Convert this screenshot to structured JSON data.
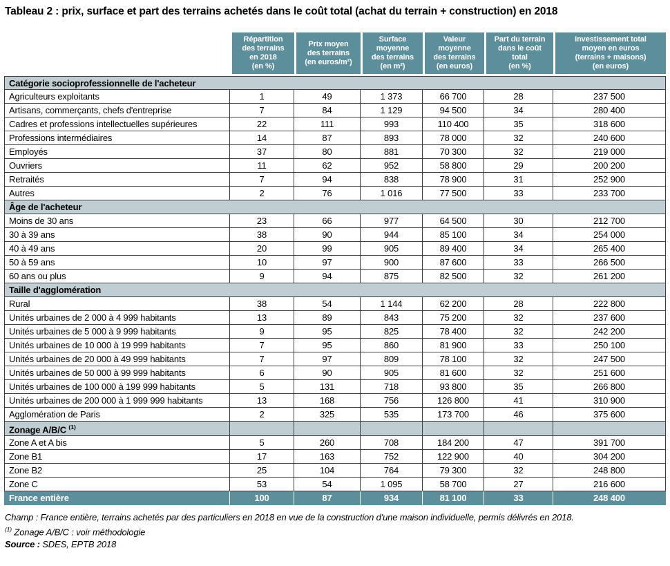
{
  "title": "Tableau 2 : prix, surface et part des terrains achetés dans le coût total (achat du terrain + construction) en 2018",
  "colors": {
    "teal": "#5d8e9b",
    "section_bg": "#c0cdd3",
    "border": "#3e3e3e"
  },
  "table": {
    "columns": [
      "Répartition\ndes terrains\nen 2018\n(en %)",
      "Prix moyen\ndes terrains\n(en euros/m²)",
      "Surface\nmoyenne\ndes terrains\n(en m²)",
      "Valeur\nmoyenne\ndes terrains\n(en euros)",
      "Part du terrain\ndans le coût\ntotal\n(en %)",
      "Investissement total\nmoyen en euros\n(terrains + maisons)\n(en euros)"
    ],
    "sections": [
      {
        "label": "Catégorie socioprofessionnelle de l'acheteur",
        "sup": "",
        "divided": false,
        "rows": [
          {
            "label": "Agriculteurs exploitants",
            "values": [
              "1",
              "49",
              "1 373",
              "66 700",
              "28",
              "237 500"
            ]
          },
          {
            "label": "Artisans, commerçants, chefs d'entreprise",
            "values": [
              "7",
              "84",
              "1 129",
              "94 500",
              "34",
              "280 400"
            ]
          },
          {
            "label": "Cadres et professions intellectuelles supérieures",
            "values": [
              "22",
              "111",
              "993",
              "110 400",
              "35",
              "318 600"
            ]
          },
          {
            "label": "Professions intermédiaires",
            "values": [
              "14",
              "87",
              "893",
              "78 000",
              "32",
              "240 600"
            ]
          },
          {
            "label": "Employés",
            "values": [
              "37",
              "80",
              "881",
              "70 300",
              "32",
              "219 000"
            ]
          },
          {
            "label": "Ouvriers",
            "values": [
              "11",
              "62",
              "952",
              "58 800",
              "29",
              "200 200"
            ]
          },
          {
            "label": "Retraités",
            "values": [
              "7",
              "94",
              "838",
              "78 900",
              "31",
              "252 900"
            ]
          },
          {
            "label": "Autres",
            "values": [
              "2",
              "76",
              "1 016",
              "77 500",
              "33",
              "233 700"
            ]
          }
        ]
      },
      {
        "label": "Âge de l'acheteur",
        "sup": "",
        "divided": false,
        "rows": [
          {
            "label": "Moins de 30 ans",
            "values": [
              "23",
              "66",
              "977",
              "64 500",
              "30",
              "212 700"
            ]
          },
          {
            "label": "30 à 39 ans",
            "values": [
              "38",
              "90",
              "944",
              "85 100",
              "34",
              "254 000"
            ]
          },
          {
            "label": "40 à 49 ans",
            "values": [
              "20",
              "99",
              "905",
              "89 400",
              "34",
              "265 400"
            ]
          },
          {
            "label": "50 à 59 ans",
            "values": [
              "10",
              "97",
              "900",
              "87 600",
              "33",
              "266 500"
            ]
          },
          {
            "label": "60 ans ou plus",
            "values": [
              "9",
              "94",
              "875",
              "82 500",
              "32",
              "261 200"
            ]
          }
        ]
      },
      {
        "label": "Taille d'agglomération",
        "sup": "",
        "divided": false,
        "rows": [
          {
            "label": "Rural",
            "values": [
              "38",
              "54",
              "1 144",
              "62 200",
              "28",
              "222 800"
            ]
          },
          {
            "label": "Unités urbaines de 2 000 à 4 999 habitants",
            "values": [
              "13",
              "89",
              "843",
              "75 200",
              "32",
              "237 600"
            ]
          },
          {
            "label": "Unités urbaines de 5 000 à 9 999 habitants",
            "values": [
              "9",
              "95",
              "825",
              "78 400",
              "32",
              "242 200"
            ]
          },
          {
            "label": "Unités urbaines de 10 000 à 19 999 habitants",
            "values": [
              "7",
              "95",
              "860",
              "81 900",
              "33",
              "250 100"
            ]
          },
          {
            "label": "Unités urbaines de 20 000 à 49 999 habitants",
            "values": [
              "7",
              "97",
              "809",
              "78 100",
              "32",
              "247 500"
            ]
          },
          {
            "label": "Unités urbaines de 50 000 à 99 999 habitants",
            "values": [
              "6",
              "90",
              "905",
              "81 600",
              "32",
              "251 600"
            ]
          },
          {
            "label": "Unités urbaines de 100 000 à 199 999 habitants",
            "values": [
              "5",
              "131",
              "718",
              "93 800",
              "35",
              "266 800"
            ]
          },
          {
            "label": "Unités urbaines de 200 000 à 1 999 999 habitants",
            "values": [
              "13",
              "168",
              "756",
              "126 800",
              "41",
              "310 900"
            ]
          },
          {
            "label": "Agglomération de Paris",
            "values": [
              "2",
              "325",
              "535",
              "173 700",
              "46",
              "375 600"
            ]
          }
        ]
      },
      {
        "label": "Zonage A/B/C ",
        "sup": "(1)",
        "divided": true,
        "rows": [
          {
            "label": "Zone A et A bis",
            "values": [
              "5",
              "260",
              "708",
              "184 200",
              "47",
              "391 700"
            ]
          },
          {
            "label": "Zone B1",
            "values": [
              "17",
              "163",
              "752",
              "122 900",
              "40",
              "304 200"
            ]
          },
          {
            "label": "Zone B2",
            "values": [
              "25",
              "104",
              "764",
              "79 300",
              "32",
              "248 800"
            ]
          },
          {
            "label": "Zone C",
            "values": [
              "53",
              "54",
              "1 095",
              "58 700",
              "27",
              "216 600"
            ]
          }
        ]
      }
    ],
    "total_row": {
      "label": "France entière",
      "values": [
        "100",
        "87",
        "934",
        "81 100",
        "33",
        "248 400"
      ]
    }
  },
  "footer": {
    "champ": "Champ : France entière, terrains achetés par des particuliers en 2018 en vue de la construction d'une maison individuelle, permis délivrés en 2018.",
    "note1_sup": "(1)",
    "note1_text": " Zonage A/B/C : voir méthodologie",
    "source_label": "Source :",
    "source_text": " SDES, EPTB 2018"
  }
}
